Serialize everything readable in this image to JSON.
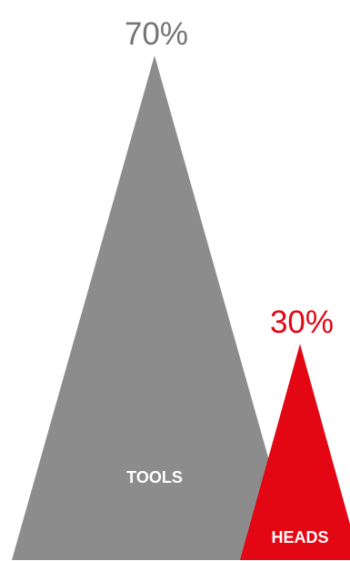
{
  "chart_data": {
    "type": "bar",
    "categories": [
      "TOOLS",
      "HEADS"
    ],
    "values": [
      70,
      30
    ],
    "value_labels": [
      "70%",
      "30%"
    ],
    "colors": [
      "#8c8c8c",
      "#e30613"
    ],
    "label_colors": [
      "#757575",
      "#e30613"
    ],
    "category_label_color": "#ffffff",
    "mark_shape": "triangle",
    "ylim": [
      0,
      100
    ],
    "title": "",
    "xlabel": "",
    "ylabel": ""
  }
}
